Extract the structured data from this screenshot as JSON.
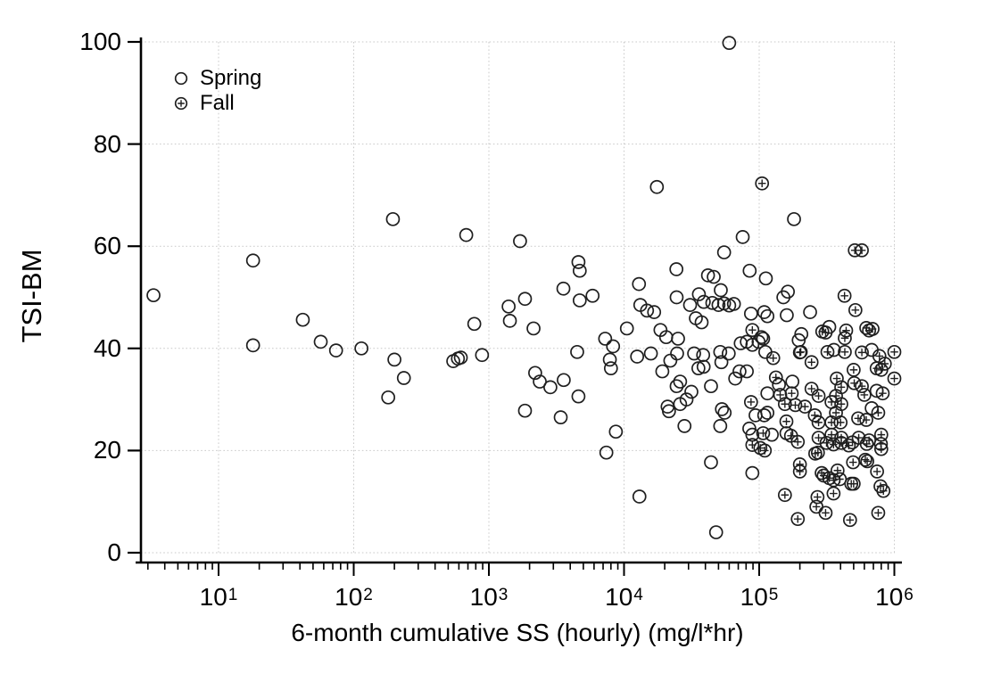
{
  "figure": {
    "y_axis": {
      "title": "TSI-BM",
      "tick_labels": [
        "0",
        "20",
        "40",
        "60",
        "80",
        "100"
      ],
      "tick_values": [
        0,
        20,
        40,
        60,
        80,
        100
      ]
    },
    "x_axis": {
      "title": "6-month cumulative SS (hourly) (mg/l*hr)",
      "scale": "log",
      "tick_base": "10",
      "tick_exponents": [
        "1",
        "2",
        "3",
        "4",
        "5",
        "6"
      ]
    },
    "legend": {
      "items": [
        {
          "label": "Spring",
          "marker": "open-circle"
        },
        {
          "label": "Fall",
          "marker": "circle-plus"
        }
      ]
    },
    "colors": {
      "marker": "#1f1f1f",
      "grid": "#c9c9c9",
      "axis": "#000000",
      "background": "#ffffff"
    }
  },
  "chart_data": {
    "type": "scatter",
    "title": "",
    "xlabel": "6-month cumulative SS (hourly) (mg/l*hr)",
    "ylabel": "TSI-BM",
    "x_scale": "log",
    "xlim": [
      2.6,
      1100000
    ],
    "ylim": [
      0,
      100
    ],
    "grid": true,
    "legend_position": "upper-left",
    "series": [
      {
        "name": "Spring",
        "marker": "open-circle",
        "points": [
          [
            3.3,
            50.4
          ],
          [
            18,
            57.2
          ],
          [
            18,
            40.6
          ],
          [
            42,
            45.6
          ],
          [
            57,
            41.3
          ],
          [
            74,
            39.6
          ],
          [
            114,
            40.0
          ],
          [
            180,
            30.4
          ],
          [
            195,
            65.3
          ],
          [
            200,
            37.8
          ],
          [
            235,
            34.2
          ],
          [
            545,
            37.5
          ],
          [
            590,
            38.0
          ],
          [
            620,
            38.2
          ],
          [
            680,
            62.2
          ],
          [
            780,
            44.8
          ],
          [
            890,
            38.7
          ],
          [
            1400,
            48.2
          ],
          [
            1430,
            45.4
          ],
          [
            1700,
            61.0
          ],
          [
            1850,
            49.7
          ],
          [
            1850,
            27.8
          ],
          [
            2140,
            43.9
          ],
          [
            2200,
            35.2
          ],
          [
            2380,
            33.5
          ],
          [
            2850,
            32.4
          ],
          [
            3400,
            26.5
          ],
          [
            3560,
            51.7
          ],
          [
            3580,
            33.8
          ],
          [
            4500,
            39.3
          ],
          [
            4600,
            56.9
          ],
          [
            4600,
            30.6
          ],
          [
            4700,
            55.2
          ],
          [
            4700,
            49.4
          ],
          [
            5850,
            50.3
          ],
          [
            7250,
            41.9
          ],
          [
            7400,
            19.6
          ],
          [
            7850,
            37.8
          ],
          [
            8000,
            36.1
          ],
          [
            8300,
            40.4
          ],
          [
            8700,
            23.7
          ],
          [
            10500,
            43.9
          ],
          [
            12500,
            38.4
          ],
          [
            12900,
            52.6
          ],
          [
            13000,
            11.0
          ],
          [
            13200,
            48.5
          ],
          [
            14800,
            47.4
          ],
          [
            15800,
            39.0
          ],
          [
            16700,
            47.1
          ],
          [
            17500,
            71.6
          ],
          [
            18600,
            43.6
          ],
          [
            19200,
            35.5
          ],
          [
            20500,
            42.2
          ],
          [
            21000,
            28.6
          ],
          [
            21500,
            27.7
          ],
          [
            22000,
            37.6
          ],
          [
            24400,
            55.5
          ],
          [
            24500,
            50.0
          ],
          [
            24500,
            32.6
          ],
          [
            24700,
            39.0
          ],
          [
            25100,
            41.9
          ],
          [
            26000,
            33.5
          ],
          [
            26000,
            29.1
          ],
          [
            28000,
            24.8
          ],
          [
            29000,
            30.0
          ],
          [
            30800,
            48.5
          ],
          [
            31500,
            31.5
          ],
          [
            33000,
            39.0
          ],
          [
            34000,
            45.9
          ],
          [
            35500,
            36.1
          ],
          [
            35800,
            50.6
          ],
          [
            37500,
            45.1
          ],
          [
            38500,
            38.7
          ],
          [
            38800,
            36.4
          ],
          [
            38900,
            49.1
          ],
          [
            41800,
            54.3
          ],
          [
            44000,
            32.6
          ],
          [
            44000,
            17.7
          ],
          [
            45000,
            48.9
          ],
          [
            46100,
            54.0
          ],
          [
            48000,
            4.0
          ],
          [
            50000,
            48.5
          ],
          [
            51500,
            39.3
          ],
          [
            51500,
            24.8
          ],
          [
            52000,
            51.4
          ],
          [
            52500,
            37.3
          ],
          [
            53000,
            28.1
          ],
          [
            55000,
            58.8
          ],
          [
            55000,
            48.8
          ],
          [
            55500,
            27.4
          ],
          [
            59500,
            39.0
          ],
          [
            60000,
            99.8
          ],
          [
            60000,
            48.4
          ],
          [
            65000,
            48.7
          ],
          [
            66500,
            34.1
          ],
          [
            71500,
            35.5
          ],
          [
            73000,
            41.0
          ],
          [
            75500,
            61.8
          ],
          [
            81000,
            41.3
          ],
          [
            81000,
            35.5
          ],
          [
            84500,
            24.3
          ],
          [
            85000,
            55.2
          ],
          [
            87000,
            46.8
          ],
          [
            89000,
            40.7
          ],
          [
            89000,
            23.1
          ],
          [
            89000,
            15.6
          ],
          [
            94000,
            26.9
          ],
          [
            99000,
            41.3
          ],
          [
            104000,
            42.2
          ],
          [
            107000,
            41.9
          ],
          [
            109000,
            47.1
          ],
          [
            109000,
            26.9
          ],
          [
            111000,
            39.3
          ],
          [
            112000,
            53.7
          ],
          [
            115000,
            46.3
          ],
          [
            115000,
            31.2
          ],
          [
            115000,
            27.4
          ],
          [
            124000,
            23.1
          ],
          [
            140000,
            32.9
          ],
          [
            151000,
            50.0
          ],
          [
            159000,
            23.4
          ],
          [
            160000,
            46.5
          ],
          [
            163000,
            51.1
          ],
          [
            176000,
            33.5
          ],
          [
            181000,
            65.3
          ],
          [
            196000,
            41.6
          ],
          [
            205000,
            42.8
          ],
          [
            238000,
            47.1
          ],
          [
            330000,
            44.2
          ],
          [
            357000,
            39.7
          ],
          [
            680000,
            39.7
          ],
          [
            680000,
            28.3
          ],
          [
            740000,
            31.7
          ]
        ]
      },
      {
        "name": "Fall",
        "marker": "circle-plus",
        "points": [
          [
            87000,
            29.5
          ],
          [
            89000,
            43.6
          ],
          [
            89000,
            21.1
          ],
          [
            102000,
            20.5
          ],
          [
            105000,
            72.3
          ],
          [
            107000,
            23.4
          ],
          [
            110000,
            20.0
          ],
          [
            127000,
            38.1
          ],
          [
            133000,
            34.3
          ],
          [
            143000,
            30.9
          ],
          [
            155000,
            29.1
          ],
          [
            155000,
            11.3
          ],
          [
            159000,
            25.7
          ],
          [
            172000,
            22.9
          ],
          [
            174000,
            31.2
          ],
          [
            185000,
            28.9
          ],
          [
            193000,
            21.7
          ],
          [
            193000,
            6.6
          ],
          [
            200000,
            39.2
          ],
          [
            200000,
            17.3
          ],
          [
            200000,
            15.9
          ],
          [
            203000,
            39.3
          ],
          [
            218000,
            28.6
          ],
          [
            244000,
            37.3
          ],
          [
            244000,
            32.1
          ],
          [
            258000,
            26.9
          ],
          [
            260000,
            19.4
          ],
          [
            265000,
            9.0
          ],
          [
            270000,
            10.9
          ],
          [
            272000,
            19.6
          ],
          [
            275000,
            30.7
          ],
          [
            275000,
            25.5
          ],
          [
            275000,
            22.5
          ],
          [
            290000,
            15.6
          ],
          [
            293000,
            43.3
          ],
          [
            300000,
            15.1
          ],
          [
            310000,
            43.1
          ],
          [
            310000,
            7.8
          ],
          [
            315000,
            21.5
          ],
          [
            320000,
            39.3
          ],
          [
            330000,
            14.6
          ],
          [
            343000,
            29.5
          ],
          [
            343000,
            25.5
          ],
          [
            343000,
            23.1
          ],
          [
            355000,
            21.2
          ],
          [
            355000,
            14.2
          ],
          [
            355000,
            11.6
          ],
          [
            370000,
            30.7
          ],
          [
            370000,
            27.4
          ],
          [
            375000,
            34.1
          ],
          [
            380000,
            16.1
          ],
          [
            395000,
            14.4
          ],
          [
            400000,
            25.5
          ],
          [
            405000,
            32.4
          ],
          [
            405000,
            29.1
          ],
          [
            405000,
            22.5
          ],
          [
            405000,
            21.5
          ],
          [
            428000,
            50.3
          ],
          [
            430000,
            42.0
          ],
          [
            430000,
            39.3
          ],
          [
            440000,
            43.5
          ],
          [
            460000,
            21.0
          ],
          [
            470000,
            6.4
          ],
          [
            480000,
            13.5
          ],
          [
            490000,
            21.6
          ],
          [
            495000,
            17.7
          ],
          [
            500000,
            35.8
          ],
          [
            500000,
            13.5
          ],
          [
            505000,
            33.2
          ],
          [
            510000,
            59.2
          ],
          [
            515000,
            47.5
          ],
          [
            540000,
            26.3
          ],
          [
            545000,
            22.5
          ],
          [
            575000,
            59.2
          ],
          [
            575000,
            39.2
          ],
          [
            575000,
            32.6
          ],
          [
            600000,
            30.9
          ],
          [
            610000,
            18.2
          ],
          [
            620000,
            44.0
          ],
          [
            620000,
            26.0
          ],
          [
            625000,
            21.3
          ],
          [
            630000,
            17.9
          ],
          [
            650000,
            43.5
          ],
          [
            650000,
            22.0
          ],
          [
            690000,
            43.8
          ],
          [
            740000,
            36.1
          ],
          [
            745000,
            15.9
          ],
          [
            760000,
            27.4
          ],
          [
            760000,
            7.8
          ],
          [
            775000,
            38.5
          ],
          [
            790000,
            13.0
          ],
          [
            795000,
            21.3
          ],
          [
            800000,
            35.8
          ],
          [
            800000,
            23.1
          ],
          [
            800000,
            20.3
          ],
          [
            820000,
            31.2
          ],
          [
            830000,
            12.1
          ],
          [
            850000,
            37.0
          ],
          [
            1000000,
            39.3
          ],
          [
            1000000,
            34.1
          ]
        ]
      }
    ]
  }
}
